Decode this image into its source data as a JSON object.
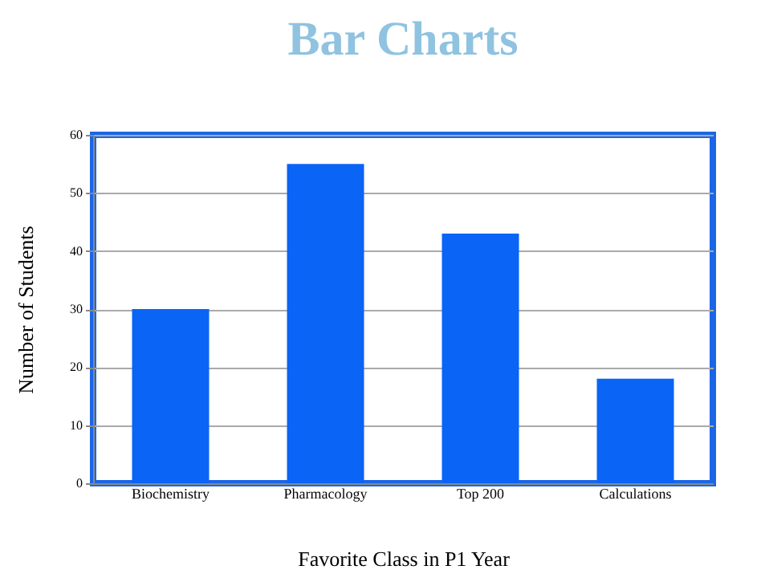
{
  "chart_data": {
    "type": "bar",
    "title": "Bar Charts",
    "xlabel": "Favorite Class in P1 Year",
    "ylabel": "Number of Students",
    "categories": [
      "Biochemistry",
      "Pharmacology",
      "Top 200",
      "Calculations"
    ],
    "values": [
      30,
      55,
      43,
      18
    ],
    "color": "#0a64f5",
    "ylim": [
      0,
      60
    ],
    "yticks": [
      0,
      10,
      20,
      30,
      40,
      50,
      60
    ],
    "grid": "y"
  }
}
